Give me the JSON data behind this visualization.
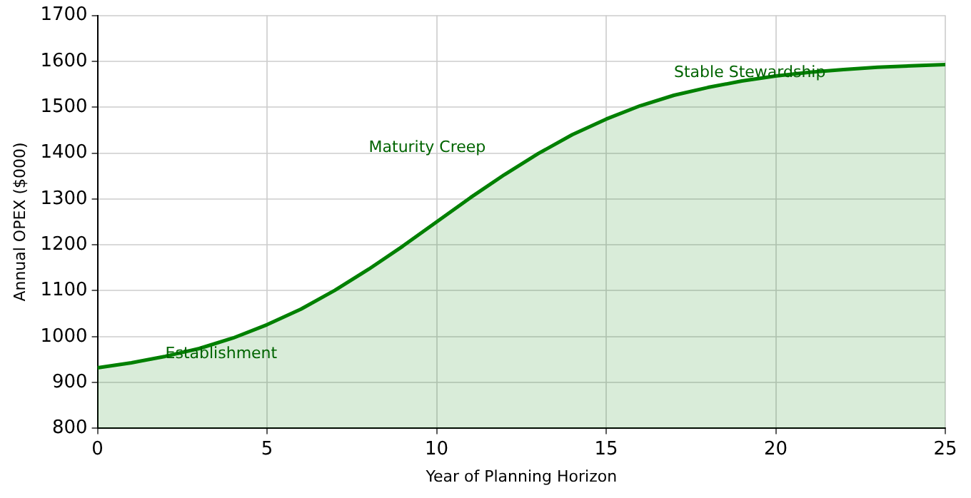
{
  "chart_data": {
    "type": "area",
    "xlabel": "Year of Planning Horizon",
    "ylabel": "Annual OPEX ($000)",
    "x": [
      0,
      1,
      2,
      3,
      4,
      5,
      6,
      7,
      8,
      9,
      10,
      11,
      12,
      13,
      14,
      15,
      16,
      17,
      18,
      19,
      20,
      21,
      22,
      23,
      24,
      25
    ],
    "series": [
      {
        "color": "#008000",
        "values": [
          932,
          943,
          957,
          974,
          997,
          1026,
          1060,
          1101,
          1147,
          1197,
          1250,
          1303,
          1353,
          1399,
          1440,
          1474,
          1503,
          1526,
          1543,
          1557,
          1568,
          1576,
          1582,
          1587,
          1590,
          1593
        ]
      }
    ],
    "xlim": [
      0,
      25
    ],
    "xticks": [
      0,
      5,
      10,
      15,
      20,
      25
    ],
    "ylim": [
      800,
      1700
    ],
    "yticks": [
      800,
      900,
      1000,
      1100,
      1200,
      1300,
      1400,
      1500,
      1600,
      1700
    ],
    "grid": true,
    "legend": false,
    "line_style": "solid",
    "marker": "none",
    "annotations": [
      "Establishment",
      "Maturity Creep",
      "Stable Stewardship"
    ]
  }
}
